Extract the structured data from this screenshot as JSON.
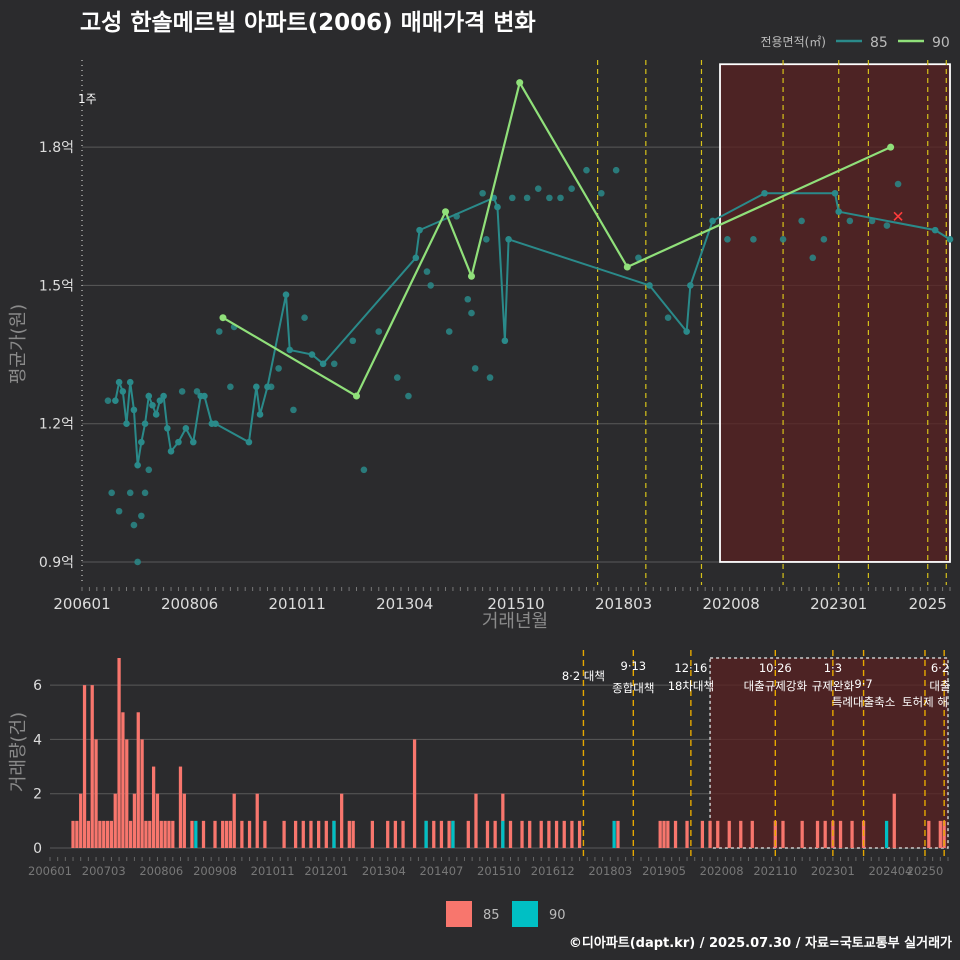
{
  "title": "고성 한솔메르빌 아파트(2006) 매매가격 변화",
  "footer": "©디아파트(dapt.kr) / 2025.07.30 / 자료=국토교통부 실거래가",
  "colors": {
    "bg": "#2b2b2d",
    "s85": "#2a8a8a",
    "s90": "#90e07a",
    "bar85": "#f8766d",
    "bar90": "#00bfc4",
    "policy": "#d6c21a",
    "policy_bar": "#e6a800",
    "shade": "#5a2222"
  },
  "chart_data": [
    {
      "type": "line",
      "title": "고성 한솔메르빌 아파트(2006) 매매가격 변화",
      "xlabel": "거래년월",
      "ylabel": "평균가(원)",
      "xlim": [
        "2006-01",
        "2025-07"
      ],
      "ylim": [
        0.85,
        2.0
      ],
      "yticks": [
        0.9,
        1.2,
        1.5,
        1.8
      ],
      "ytick_labels": [
        "0.9억",
        "1.2억",
        "1.5억",
        "1.8억"
      ],
      "xtick_labels": [
        "200601",
        "200806",
        "201011",
        "201304",
        "201510",
        "201803",
        "202008",
        "202301",
        "2025"
      ],
      "legend": {
        "title": "전용면적(㎡)",
        "position": "top-right",
        "entries": [
          "85",
          "90"
        ]
      },
      "annotation_text": "1주",
      "series": [
        {
          "name": "85",
          "points": [
            [
              "2006-10",
              1.25
            ],
            [
              "2006-11",
              1.29
            ],
            [
              "2006-12",
              1.27
            ],
            [
              "2007-01",
              1.2
            ],
            [
              "2007-02",
              1.29
            ],
            [
              "2007-03",
              1.23
            ],
            [
              "2007-04",
              1.11
            ],
            [
              "2007-05",
              1.16
            ],
            [
              "2007-06",
              1.2
            ],
            [
              "2007-07",
              1.26
            ],
            [
              "2007-08",
              1.24
            ],
            [
              "2007-09",
              1.22
            ],
            [
              "2007-10",
              1.25
            ],
            [
              "2007-11",
              1.26
            ],
            [
              "2007-12",
              1.19
            ],
            [
              "2008-01",
              1.14
            ],
            [
              "2008-03",
              1.16
            ],
            [
              "2008-05",
              1.19
            ],
            [
              "2008-07",
              1.16
            ],
            [
              "2008-09",
              1.26
            ],
            [
              "2008-10",
              1.26
            ],
            [
              "2008-12",
              1.2
            ],
            [
              "2009-01",
              1.2
            ],
            [
              "2009-10",
              1.16
            ],
            [
              "2009-12",
              1.28
            ],
            [
              "2010-01",
              1.22
            ],
            [
              "2010-03",
              1.28
            ],
            [
              "2010-08",
              1.48
            ],
            [
              "2010-09",
              1.36
            ],
            [
              "2011-03",
              1.35
            ],
            [
              "2011-06",
              1.33
            ],
            [
              "2013-07",
              1.56
            ],
            [
              "2013-08",
              1.62
            ],
            [
              "2015-04",
              1.69
            ],
            [
              "2015-05",
              1.67
            ],
            [
              "2015-07",
              1.38
            ],
            [
              "2015-08",
              1.6
            ],
            [
              "2018-10",
              1.5
            ],
            [
              "2019-08",
              1.4
            ],
            [
              "2019-09",
              1.5
            ],
            [
              "2020-03",
              1.64
            ],
            [
              "2021-05",
              1.7
            ],
            [
              "2022-12",
              1.7
            ],
            [
              "2023-01",
              1.66
            ],
            [
              "2025-03",
              1.62
            ],
            [
              "2025-07",
              1.6
            ]
          ]
        },
        {
          "name": "90",
          "points": [
            [
              "2009-03",
              1.43
            ],
            [
              "2012-03",
              1.26
            ],
            [
              "2014-03",
              1.66
            ],
            [
              "2014-10",
              1.52
            ],
            [
              "2015-11",
              1.94
            ],
            [
              "2018-04",
              1.54
            ],
            [
              "2024-03",
              1.8
            ]
          ]
        }
      ],
      "extra_points_85": [
        [
          "2006-08",
          1.25
        ],
        [
          "2006-09",
          1.05
        ],
        [
          "2006-11",
          1.01
        ],
        [
          "2007-02",
          1.05
        ],
        [
          "2007-03",
          0.98
        ],
        [
          "2007-04",
          0.9
        ],
        [
          "2007-05",
          1.0
        ],
        [
          "2007-06",
          1.05
        ],
        [
          "2007-07",
          1.1
        ],
        [
          "2008-04",
          1.27
        ],
        [
          "2008-08",
          1.27
        ],
        [
          "2009-02",
          1.4
        ],
        [
          "2009-05",
          1.28
        ],
        [
          "2009-06",
          1.41
        ],
        [
          "2010-04",
          1.28
        ],
        [
          "2010-06",
          1.32
        ],
        [
          "2010-10",
          1.23
        ],
        [
          "2011-01",
          1.43
        ],
        [
          "2011-09",
          1.33
        ],
        [
          "2012-02",
          1.38
        ],
        [
          "2012-05",
          1.1
        ],
        [
          "2012-09",
          1.4
        ],
        [
          "2013-02",
          1.3
        ],
        [
          "2013-05",
          1.26
        ],
        [
          "2013-10",
          1.53
        ],
        [
          "2013-11",
          1.5
        ],
        [
          "2014-04",
          1.4
        ],
        [
          "2014-06",
          1.65
        ],
        [
          "2014-09",
          1.47
        ],
        [
          "2014-10",
          1.44
        ],
        [
          "2014-11",
          1.32
        ],
        [
          "2015-01",
          1.7
        ],
        [
          "2015-02",
          1.6
        ],
        [
          "2015-03",
          1.3
        ],
        [
          "2015-09",
          1.69
        ],
        [
          "2016-01",
          1.69
        ],
        [
          "2016-04",
          1.71
        ],
        [
          "2016-07",
          1.69
        ],
        [
          "2016-10",
          1.69
        ],
        [
          "2017-01",
          1.71
        ],
        [
          "2017-05",
          1.75
        ],
        [
          "2017-09",
          1.7
        ],
        [
          "2018-01",
          1.75
        ],
        [
          "2018-07",
          1.56
        ],
        [
          "2019-03",
          1.43
        ],
        [
          "2020-07",
          1.6
        ],
        [
          "2021-02",
          1.6
        ],
        [
          "2021-10",
          1.6
        ],
        [
          "2022-03",
          1.64
        ],
        [
          "2022-06",
          1.56
        ],
        [
          "2022-09",
          1.6
        ],
        [
          "2023-04",
          1.64
        ],
        [
          "2023-10",
          1.64
        ],
        [
          "2024-02",
          1.63
        ],
        [
          "2024-05",
          1.72
        ]
      ],
      "highlight_point": [
        "2024-05",
        1.65
      ],
      "policy_dates": [
        "2017-08",
        "2018-09",
        "2019-12",
        "2021-10",
        "2023-01",
        "2023-09",
        "2025-01",
        "2025-06"
      ],
      "shaded_range": [
        "2020-05",
        "2025-07"
      ],
      "shaded_ylim": [
        0.9,
        1.98
      ]
    },
    {
      "type": "bar",
      "ylabel": "거래량(건)",
      "ylim": [
        0,
        7
      ],
      "yticks": [
        0,
        2,
        4,
        6
      ],
      "ytick_labels": [
        "0",
        "2",
        "4",
        "6"
      ],
      "xtick_labels": [
        "200601",
        "200703",
        "200806",
        "200908",
        "201011",
        "201201",
        "201304",
        "201407",
        "201510",
        "201612",
        "201803",
        "201905",
        "202008",
        "202110",
        "202301",
        "202404",
        "20250"
      ],
      "legend": {
        "position": "bottom",
        "entries": [
          "85",
          "90"
        ]
      },
      "policy_labels": [
        {
          "date": "2017-08",
          "lines": [
            "8·2 대책"
          ]
        },
        {
          "date": "2018-09",
          "lines": [
            "9·13",
            "종합대책"
          ]
        },
        {
          "date": "2019-12",
          "lines": [
            "12·16",
            "18차대책"
          ]
        },
        {
          "date": "2021-10",
          "lines": [
            "10·26",
            "대출규제강화"
          ]
        },
        {
          "date": "2023-01",
          "lines": [
            "1·3",
            "규제완화"
          ]
        },
        {
          "date": "2023-09",
          "lines": [
            "9·7",
            "특례대출축소"
          ]
        },
        {
          "date": "2025-01",
          "lines": [
            "",
            "토허제 해"
          ]
        },
        {
          "date": "2025-06",
          "lines": [
            "6·2",
            "대출"
          ]
        }
      ],
      "series": [
        {
          "name": "85",
          "values": [
            [
              "2006-07",
              1
            ],
            [
              "2006-08",
              1
            ],
            [
              "2006-09",
              2
            ],
            [
              "2006-10",
              6
            ],
            [
              "2006-11",
              1
            ],
            [
              "2006-12",
              6
            ],
            [
              "2007-01",
              4
            ],
            [
              "2007-02",
              1
            ],
            [
              "2007-03",
              1
            ],
            [
              "2007-04",
              1
            ],
            [
              "2007-05",
              1
            ],
            [
              "2007-06",
              2
            ],
            [
              "2007-07",
              7
            ],
            [
              "2007-08",
              5
            ],
            [
              "2007-09",
              4
            ],
            [
              "2007-10",
              1
            ],
            [
              "2007-11",
              2
            ],
            [
              "2007-12",
              5
            ],
            [
              "2008-01",
              4
            ],
            [
              "2008-02",
              1
            ],
            [
              "2008-03",
              1
            ],
            [
              "2008-04",
              3
            ],
            [
              "2008-05",
              2
            ],
            [
              "2008-06",
              1
            ],
            [
              "2008-07",
              1
            ],
            [
              "2008-08",
              1
            ],
            [
              "2008-09",
              1
            ],
            [
              "2008-11",
              3
            ],
            [
              "2008-12",
              2
            ],
            [
              "2009-02",
              1
            ],
            [
              "2009-05",
              1
            ],
            [
              "2009-08",
              1
            ],
            [
              "2009-10",
              1
            ],
            [
              "2009-11",
              1
            ],
            [
              "2009-12",
              1
            ],
            [
              "2010-01",
              2
            ],
            [
              "2010-03",
              1
            ],
            [
              "2010-05",
              1
            ],
            [
              "2010-07",
              2
            ],
            [
              "2010-09",
              1
            ],
            [
              "2011-02",
              1
            ],
            [
              "2011-05",
              1
            ],
            [
              "2011-07",
              1
            ],
            [
              "2011-09",
              1
            ],
            [
              "2011-11",
              1
            ],
            [
              "2012-01",
              1
            ],
            [
              "2012-03",
              1
            ],
            [
              "2012-05",
              2
            ],
            [
              "2012-07",
              1
            ],
            [
              "2012-08",
              1
            ],
            [
              "2013-01",
              1
            ],
            [
              "2013-05",
              1
            ],
            [
              "2013-07",
              1
            ],
            [
              "2013-09",
              1
            ],
            [
              "2013-12",
              4
            ],
            [
              "2014-03",
              1
            ],
            [
              "2014-05",
              1
            ],
            [
              "2014-07",
              1
            ],
            [
              "2014-09",
              1
            ],
            [
              "2014-10",
              1
            ],
            [
              "2015-02",
              1
            ],
            [
              "2015-04",
              2
            ],
            [
              "2015-07",
              1
            ],
            [
              "2015-09",
              1
            ],
            [
              "2015-11",
              2
            ],
            [
              "2016-01",
              1
            ],
            [
              "2016-04",
              1
            ],
            [
              "2016-06",
              1
            ],
            [
              "2016-09",
              1
            ],
            [
              "2016-11",
              1
            ],
            [
              "2017-01",
              1
            ],
            [
              "2017-03",
              1
            ],
            [
              "2017-05",
              1
            ],
            [
              "2017-07",
              1
            ],
            [
              "2018-05",
              1
            ],
            [
              "2019-04",
              1
            ],
            [
              "2019-05",
              1
            ],
            [
              "2019-06",
              1
            ],
            [
              "2019-08",
              1
            ],
            [
              "2019-11",
              1
            ],
            [
              "2020-03",
              1
            ],
            [
              "2020-05",
              1
            ],
            [
              "2020-07",
              1
            ],
            [
              "2020-10",
              1
            ],
            [
              "2021-01",
              1
            ],
            [
              "2021-04",
              1
            ],
            [
              "2021-10",
              1
            ],
            [
              "2021-12",
              1
            ],
            [
              "2022-05",
              1
            ],
            [
              "2022-09",
              1
            ],
            [
              "2022-11",
              1
            ],
            [
              "2023-01",
              1
            ],
            [
              "2023-03",
              1
            ],
            [
              "2023-06",
              1
            ],
            [
              "2023-09",
              1
            ],
            [
              "2024-05",
              2
            ],
            [
              "2025-02",
              1
            ],
            [
              "2025-05",
              1
            ],
            [
              "2025-06",
              1
            ]
          ]
        },
        {
          "name": "90",
          "values": [
            [
              "2009-03",
              1
            ],
            [
              "2012-03",
              1
            ],
            [
              "2014-03",
              1
            ],
            [
              "2014-10",
              1
            ],
            [
              "2015-11",
              1
            ],
            [
              "2018-04",
              1
            ],
            [
              "2024-03",
              1
            ]
          ]
        }
      ]
    }
  ]
}
